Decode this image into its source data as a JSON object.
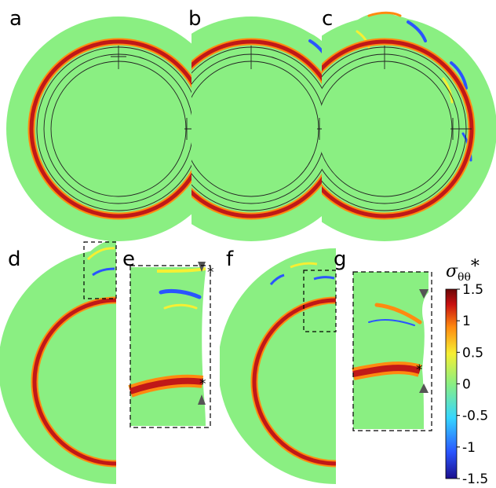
{
  "panels": {
    "a": "a",
    "b": "b",
    "c": "c",
    "d": "d",
    "e": "e",
    "f": "f",
    "g": "g"
  },
  "colorbar": {
    "symbol": "σ",
    "subscript": "θθ",
    "superscript": "*",
    "ticks": [
      "1.5",
      "1",
      "0.5",
      "0",
      "-0.5",
      "-1",
      "-1.5"
    ],
    "range": [
      -1.5,
      1.5
    ]
  },
  "markers": {
    "star": "*"
  },
  "colors": {
    "background_field": "#8aef82",
    "ring_core": "#c01818",
    "ring_edge": "#ff7a10",
    "colormap": [
      "#1b0f8c",
      "#2a55ff",
      "#35d6ff",
      "#8aef82",
      "#f6ef33",
      "#ff8a10",
      "#c81010",
      "#6a0606"
    ]
  }
}
